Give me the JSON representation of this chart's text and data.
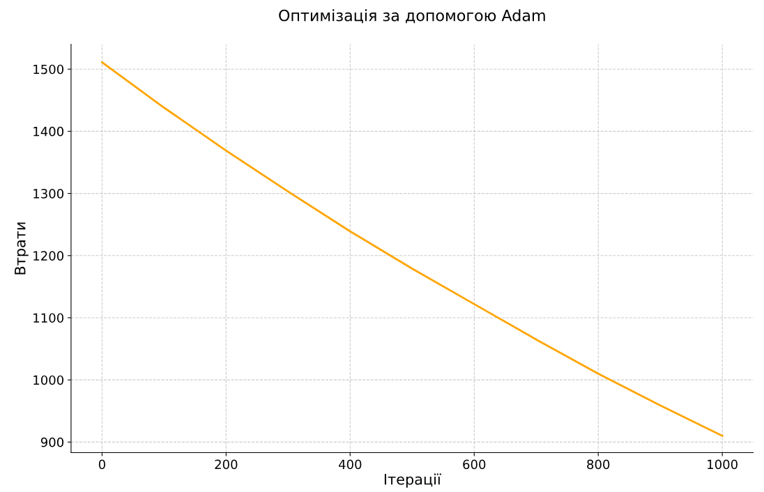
{
  "chart_data": {
    "type": "line",
    "title": "Оптимізація за допомогою Adam",
    "xlabel": "Ітерації",
    "ylabel": "Втрати",
    "x": [
      0,
      100,
      200,
      300,
      400,
      500,
      600,
      700,
      800,
      900,
      1000
    ],
    "series": [
      {
        "color": "#ffa500",
        "values": [
          1511,
          1438,
          1369,
          1303,
          1239,
          1179,
          1122,
          1065,
          1010,
          959,
          910
        ]
      }
    ],
    "xlim": [
      -50,
      1050
    ],
    "ylim": [
      883,
      1540
    ],
    "xticks": [
      0,
      200,
      400,
      600,
      800,
      1000
    ],
    "yticks": [
      900,
      1000,
      1100,
      1200,
      1300,
      1400,
      1500
    ],
    "grid": true,
    "line_style": "solid",
    "marker": "none"
  }
}
